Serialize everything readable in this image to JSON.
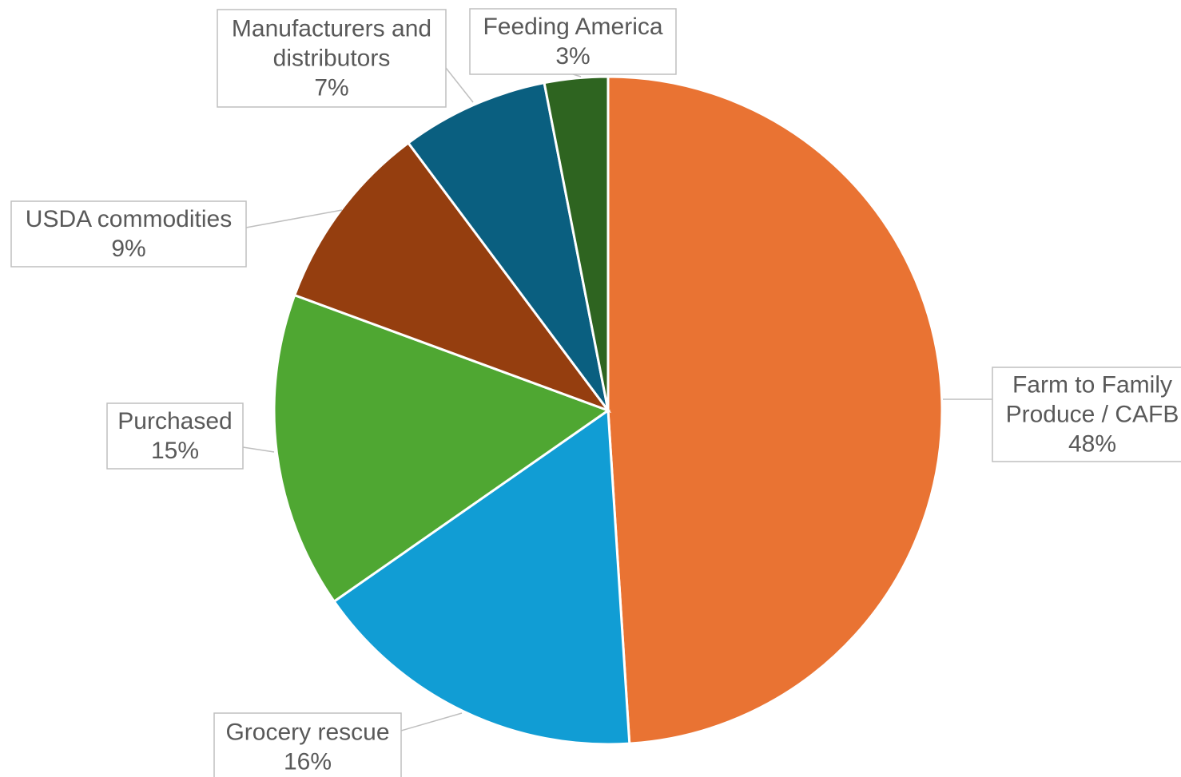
{
  "chart_data": {
    "type": "pie",
    "slices": [
      {
        "label_lines": [
          "Farm to Family",
          "Produce / CAFB"
        ],
        "value": 48,
        "value_label": "48%",
        "color": "#e97333"
      },
      {
        "label_lines": [
          "Grocery rescue"
        ],
        "value": 16,
        "value_label": "16%",
        "color": "#119dd4"
      },
      {
        "label_lines": [
          "Purchased"
        ],
        "value": 15,
        "value_label": "15%",
        "color": "#4fa732"
      },
      {
        "label_lines": [
          "USDA commodities"
        ],
        "value": 9,
        "value_label": "9%",
        "color": "#953e0f"
      },
      {
        "label_lines": [
          "Manufacturers and",
          "distributors"
        ],
        "value": 7,
        "value_label": "7%",
        "color": "#0a5f80"
      },
      {
        "label_lines": [
          "Feeding America"
        ],
        "value": 3,
        "value_label": "3%",
        "color": "#2e6420"
      }
    ]
  }
}
